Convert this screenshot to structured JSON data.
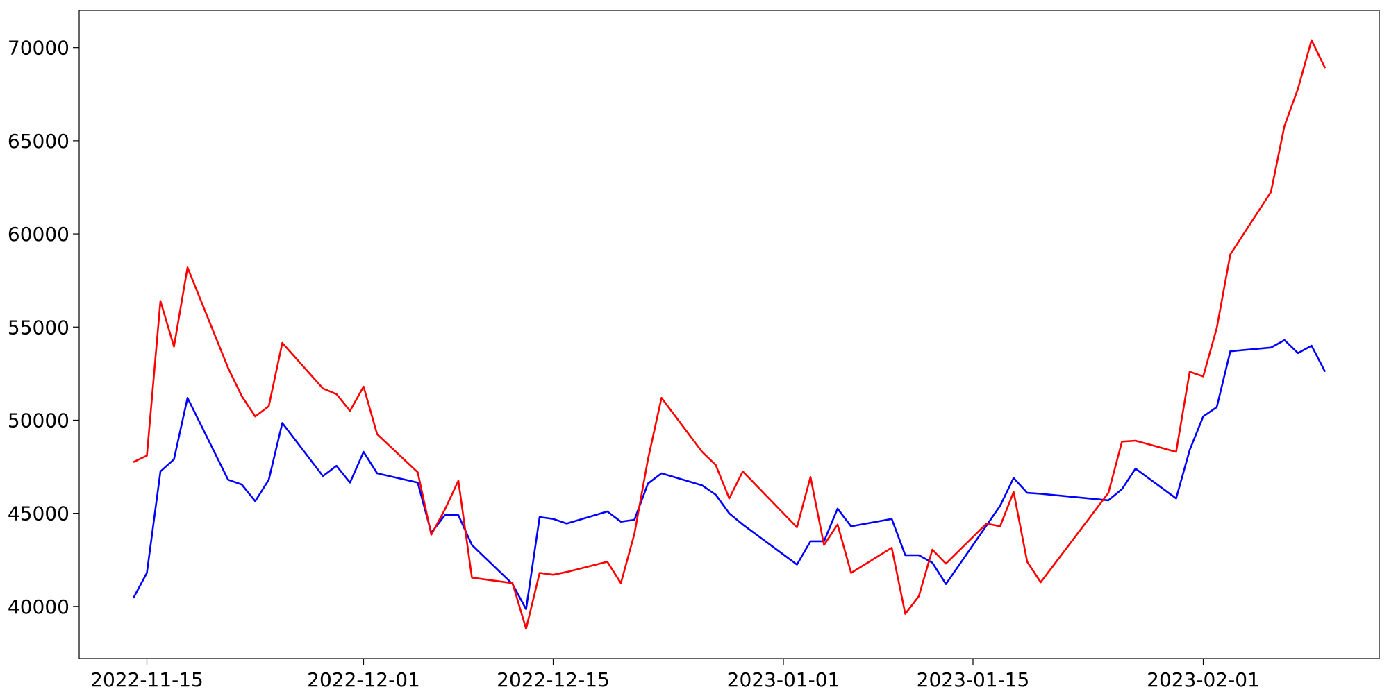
{
  "chart_data": {
    "type": "line",
    "x": [
      "2022-11-14",
      "2022-11-15",
      "2022-11-16",
      "2022-11-17",
      "2022-11-18",
      "2022-11-21",
      "2022-11-22",
      "2022-11-23",
      "2022-11-24",
      "2022-11-25",
      "2022-11-28",
      "2022-11-29",
      "2022-11-30",
      "2022-12-01",
      "2022-12-02",
      "2022-12-05",
      "2022-12-06",
      "2022-12-07",
      "2022-12-08",
      "2022-12-09",
      "2022-12-12",
      "2022-12-13",
      "2022-12-14",
      "2022-12-15",
      "2022-12-16",
      "2022-12-19",
      "2022-12-20",
      "2022-12-21",
      "2022-12-22",
      "2022-12-23",
      "2022-12-26",
      "2022-12-27",
      "2022-12-28",
      "2022-12-29",
      "2023-01-02",
      "2023-01-03",
      "2023-01-04",
      "2023-01-05",
      "2023-01-06",
      "2023-01-09",
      "2023-01-10",
      "2023-01-11",
      "2023-01-12",
      "2023-01-13",
      "2023-01-16",
      "2023-01-17",
      "2023-01-18",
      "2023-01-19",
      "2023-01-20",
      "2023-01-25",
      "2023-01-26",
      "2023-01-27",
      "2023-01-30",
      "2023-01-31",
      "2023-02-01",
      "2023-02-02",
      "2023-02-03",
      "2023-02-06",
      "2023-02-07",
      "2023-02-08",
      "2023-02-09",
      "2023-02-10"
    ],
    "series": [
      {
        "color": "#0000ff",
        "values": [
          40450,
          41800,
          47250,
          47900,
          51200,
          46800,
          46550,
          45650,
          46800,
          49850,
          47000,
          47550,
          46650,
          48300,
          47150,
          46650,
          43950,
          44900,
          44900,
          43300,
          41200,
          39850,
          44800,
          44700,
          44450,
          45100,
          44550,
          44650,
          46600,
          47150,
          46500,
          46000,
          45000,
          44400,
          42250,
          43500,
          43500,
          45250,
          44300,
          44700,
          42750,
          42750,
          42350,
          41200,
          44350,
          45400,
          46900,
          46100,
          46050,
          45700,
          46300,
          47400,
          45800,
          48400,
          50200,
          50700,
          53700,
          53900,
          54300,
          53600,
          54000,
          52600
        ]
      },
      {
        "color": "#ff0000",
        "values": [
          47750,
          48100,
          56400,
          53950,
          58200,
          52800,
          51300,
          50200,
          50750,
          54150,
          51700,
          51400,
          50500,
          51800,
          49250,
          47200,
          43850,
          45200,
          46750,
          41550,
          41250,
          38800,
          41800,
          41700,
          41850,
          42400,
          41250,
          43900,
          47900,
          51200,
          48300,
          47600,
          45800,
          47250,
          44250,
          46950,
          43300,
          44400,
          41800,
          43150,
          39600,
          40550,
          43050,
          42300,
          44450,
          44300,
          46150,
          42400,
          41300,
          46100,
          48850,
          48900,
          48300,
          52600,
          52350,
          54950,
          58900,
          62250,
          65800,
          67800,
          70400,
          68900
        ]
      }
    ],
    "xlim": [
      "2022-11-10",
      "2023-02-14"
    ],
    "xticks": [
      "2022-11-15",
      "2022-12-01",
      "2022-12-15",
      "2023-01-01",
      "2023-01-15",
      "2023-02-01"
    ],
    "ylim": [
      37200,
      72000
    ],
    "yticks": [
      40000,
      45000,
      50000,
      55000,
      60000,
      65000,
      70000
    ],
    "grid": false
  }
}
